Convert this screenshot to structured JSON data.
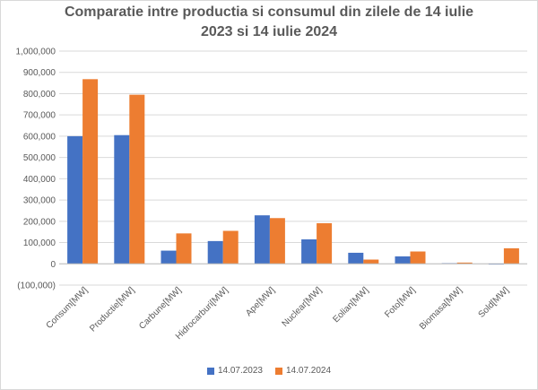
{
  "chart_data": {
    "type": "bar",
    "title_line1": "Comparatie intre productia si consumul din zilele de 14 iulie",
    "title_line2": "2023 si 14 iulie 2024",
    "categories": [
      "Consum[MW]",
      "Productie[MW]",
      "Carbune[MW]",
      "Hidrocarburi[MW]",
      "Ape[MW]",
      "Nuclear[MW]",
      "Eolian[MW]",
      "Foto[MW]",
      "Biomasa[MW]",
      "Sold[MW]"
    ],
    "series": [
      {
        "name": "14.07.2023",
        "color": "#4472c4",
        "values": [
          600000,
          605000,
          62000,
          107000,
          228000,
          115000,
          52000,
          35000,
          3000,
          -3000
        ]
      },
      {
        "name": "14.07.2024",
        "color": "#ed7d31",
        "values": [
          868000,
          795000,
          143000,
          155000,
          215000,
          191000,
          20000,
          58000,
          6000,
          73000
        ]
      }
    ],
    "ylim": [
      -100000,
      1000000
    ],
    "y_ticks": [
      {
        "value": 1000000,
        "label": "1,000,000"
      },
      {
        "value": 900000,
        "label": "900,000"
      },
      {
        "value": 800000,
        "label": "800,000"
      },
      {
        "value": 700000,
        "label": "700,000"
      },
      {
        "value": 600000,
        "label": "600,000"
      },
      {
        "value": 500000,
        "label": "500,000"
      },
      {
        "value": 400000,
        "label": "400,000"
      },
      {
        "value": 300000,
        "label": "300,000"
      },
      {
        "value": 200000,
        "label": "200,000"
      },
      {
        "value": 100000,
        "label": "100,000"
      },
      {
        "value": 0,
        "label": "0"
      },
      {
        "value": -100000,
        "label": "(100,000)"
      }
    ],
    "grid": true,
    "legend_position": "bottom"
  }
}
